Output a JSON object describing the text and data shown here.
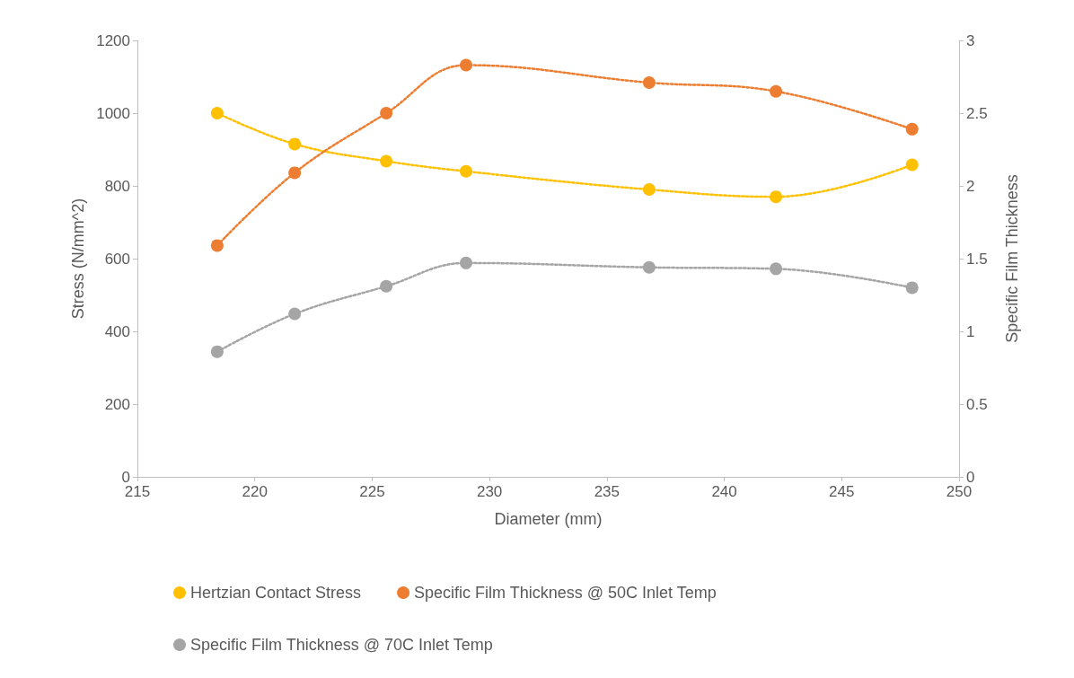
{
  "chart_data": {
    "type": "line",
    "xlabel": "Diameter (mm)",
    "ylabel": "Stress (N/mm^2)",
    "y2label": "Specific Film Thickness",
    "x": [
      218.4,
      221.7,
      225.6,
      229.0,
      236.8,
      242.2,
      248.0
    ],
    "series": [
      {
        "name": "Hertzian Contact Stress",
        "color": "#ffc000",
        "values": [
          1000,
          915,
          868,
          840,
          790,
          770,
          858
        ]
      },
      {
        "name": "Specific Film Thickness @ 50C Inlet Temp",
        "color": "#ed7d31",
        "axis": "y2",
        "values": [
          1.59,
          2.09,
          2.5,
          2.83,
          2.71,
          2.65,
          2.39
        ]
      },
      {
        "name": "Specific Film Thickness @ 70C Inlet Temp",
        "color": "#a5a5a5",
        "axis": "y2",
        "values": [
          0.86,
          1.12,
          1.31,
          1.47,
          1.44,
          1.43,
          1.3
        ]
      }
    ],
    "xlim": [
      215,
      250
    ],
    "xticks": [
      215,
      220,
      225,
      230,
      235,
      240,
      245,
      250
    ],
    "ylim": [
      0,
      1200
    ],
    "yticks": [
      0,
      200,
      400,
      600,
      800,
      1000,
      1200
    ],
    "y2lim": [
      0,
      3
    ],
    "y2ticks": [
      0,
      0.5,
      1,
      1.5,
      2,
      2.5,
      3
    ],
    "grid": false,
    "legend": "bottom",
    "marker": "circle",
    "line_style": "dotted"
  }
}
